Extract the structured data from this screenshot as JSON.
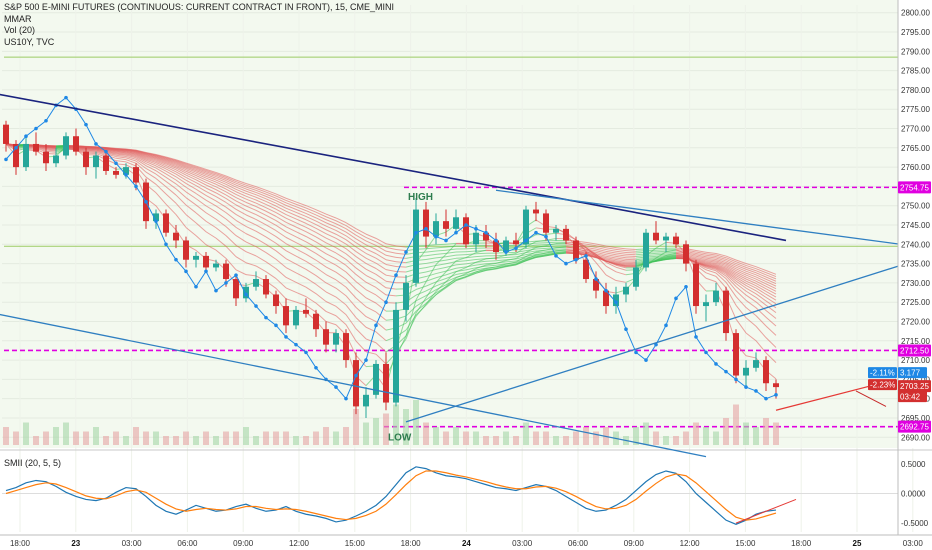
{
  "legend": {
    "title": "S&P 500 E-MINI FUTURES (CONTINUOUS: CURRENT CONTRACT IN FRONT), 15, CME_MINI",
    "indicator_1": "MMAR",
    "indicator_2": "Vol (20)",
    "indicator_3": "US10Y, TVC",
    "oscillator": "SMII (20, 5, 5)"
  },
  "colors": {
    "background": "#f3f9ef",
    "up_candle": "#26a69a",
    "down_candle": "#d32f2f",
    "trendline": "#2f7fc1",
    "dark_trendline": "#1a237e",
    "magenta_level": "#e000e0",
    "us10y": "#1e88e5",
    "smi": "#1f77b4",
    "smi_signal": "#ff7f0e"
  },
  "chart_data": {
    "type": "candlestick",
    "title": "S&P 500 E-MINI FUTURES (CONTINUOUS: CURRENT CONTRACT IN FRONT), 15, CME_MINI",
    "ylim": [
      2688,
      2802
    ],
    "yticks": [
      "2800.00",
      "2795.00",
      "2790.00",
      "2785.00",
      "2780.00",
      "2775.00",
      "2770.00",
      "2765.00",
      "2760.00",
      "2755.00",
      "2750.00",
      "2745.00",
      "2740.00",
      "2735.00",
      "2730.00",
      "2725.00",
      "2720.00",
      "2715.00",
      "2710.00",
      "2705.00",
      "2700.00",
      "2695.00",
      "2690.00"
    ],
    "xticks": [
      {
        "label": "18:00",
        "bold": false
      },
      {
        "label": "23",
        "bold": true
      },
      {
        "label": "03:00",
        "bold": false
      },
      {
        "label": "06:00",
        "bold": false
      },
      {
        "label": "09:00",
        "bold": false
      },
      {
        "label": "12:00",
        "bold": false
      },
      {
        "label": "15:00",
        "bold": false
      },
      {
        "label": "18:00",
        "bold": false
      },
      {
        "label": "24",
        "bold": true
      },
      {
        "label": "03:00",
        "bold": false
      },
      {
        "label": "06:00",
        "bold": false
      },
      {
        "label": "09:00",
        "bold": false
      },
      {
        "label": "12:00",
        "bold": false
      },
      {
        "label": "15:00",
        "bold": false
      },
      {
        "label": "18:00",
        "bold": false
      },
      {
        "label": "25",
        "bold": true
      },
      {
        "label": "03:00",
        "bold": false
      }
    ],
    "price_tags": [
      {
        "label": "2754.75",
        "value": 2754.75,
        "color": "#e000e0"
      },
      {
        "label": "2712.50",
        "value": 2712.5,
        "color": "#e000e0"
      },
      {
        "label": "2692.75",
        "value": 2692.75,
        "color": "#e000e0"
      },
      {
        "label": "2703.25",
        "value": 2703.25,
        "color": "#d32f2f"
      }
    ],
    "small_tags": [
      {
        "label": "-2.11%",
        "color": "#1e88e5"
      },
      {
        "label": "3.177",
        "color": "#1e88e5"
      },
      {
        "label": "-2.23%",
        "color": "#d32f2f"
      },
      {
        "label": "03:42",
        "color": "#d32f2f"
      }
    ],
    "horizontal_levels": [
      {
        "name": "high-level",
        "value": 2754.75,
        "start_index": 40,
        "style": "dashed"
      },
      {
        "name": "mid-level",
        "value": 2712.5,
        "start_index": 0,
        "style": "dashed"
      },
      {
        "name": "low-level",
        "value": 2692.75,
        "start_index": 38,
        "style": "dashed"
      },
      {
        "name": "green-line-top",
        "value": 2788.5,
        "start_index": 0,
        "style": "solid"
      },
      {
        "name": "green-line-mid",
        "value": 2739.5,
        "start_index": 0,
        "style": "solid"
      }
    ],
    "annotations": [
      {
        "label": "HIGH",
        "x_index": 41,
        "value": 2752.5
      },
      {
        "label": "LOW",
        "x_index": 39,
        "value": 2690.2
      }
    ],
    "trendlines": [
      {
        "name": "dark-downtrend",
        "x1": -1,
        "y1": 2779,
        "x2": 78,
        "y2": 2741
      },
      {
        "name": "downtrend-upper",
        "x1": 49,
        "y1": 2754,
        "x2": 101,
        "y2": 2736
      },
      {
        "name": "downtrend-lower",
        "x1": -1,
        "y1": 2722,
        "x2": 70,
        "y2": 2685
      },
      {
        "name": "uptrend",
        "x1": 40,
        "y1": 2694,
        "x2": 101,
        "y2": 2744
      },
      {
        "name": "red-support",
        "x1": 77,
        "y1": 2697,
        "x2": 89,
        "y2": 2705
      },
      {
        "name": "red-resistance",
        "x1": 85,
        "y1": 2702,
        "x2": 88,
        "y2": 2698
      }
    ],
    "candles": [
      [
        2771,
        2772,
        2764,
        2766
      ],
      [
        2766,
        2767,
        2758,
        2760
      ],
      [
        2760,
        2768,
        2759,
        2766
      ],
      [
        2766,
        2769,
        2763,
        2764
      ],
      [
        2764,
        2766,
        2759,
        2761
      ],
      [
        2761,
        2765,
        2760,
        2763
      ],
      [
        2763,
        2769,
        2762,
        2768
      ],
      [
        2768,
        2770,
        2763,
        2764
      ],
      [
        2764,
        2765,
        2758,
        2760
      ],
      [
        2760,
        2764,
        2757,
        2763
      ],
      [
        2763,
        2764,
        2758,
        2759
      ],
      [
        2759,
        2760,
        2757,
        2758
      ],
      [
        2758,
        2761,
        2757,
        2760
      ],
      [
        2760,
        2761,
        2754,
        2756
      ],
      [
        2756,
        2757,
        2744,
        2746
      ],
      [
        2746,
        2749,
        2744,
        2748
      ],
      [
        2748,
        2749,
        2742,
        2743
      ],
      [
        2743,
        2745,
        2739,
        2741
      ],
      [
        2741,
        2742,
        2734,
        2736
      ],
      [
        2736,
        2738,
        2734,
        2737
      ],
      [
        2737,
        2738,
        2733,
        2734
      ],
      [
        2734,
        2736,
        2733,
        2735
      ],
      [
        2735,
        2736,
        2729,
        2731
      ],
      [
        2731,
        2732,
        2724,
        2726
      ],
      [
        2726,
        2730,
        2725,
        2729
      ],
      [
        2729,
        2733,
        2728,
        2731
      ],
      [
        2731,
        2732,
        2726,
        2727
      ],
      [
        2727,
        2728,
        2722,
        2724
      ],
      [
        2724,
        2726,
        2717,
        2719
      ],
      [
        2719,
        2724,
        2718,
        2723
      ],
      [
        2723,
        2726,
        2721,
        2722
      ],
      [
        2722,
        2723,
        2716,
        2718
      ],
      [
        2718,
        2720,
        2712,
        2714
      ],
      [
        2714,
        2718,
        2712,
        2717
      ],
      [
        2717,
        2718,
        2708,
        2710
      ],
      [
        2710,
        2712,
        2696,
        2698
      ],
      [
        2698,
        2703,
        2695,
        2701
      ],
      [
        2701,
        2710,
        2700,
        2709
      ],
      [
        2709,
        2712,
        2697,
        2699
      ],
      [
        2699,
        2725,
        2698,
        2723
      ],
      [
        2723,
        2732,
        2720,
        2730
      ],
      [
        2730,
        2752,
        2729,
        2749
      ],
      [
        2749,
        2751,
        2739,
        2742
      ],
      [
        2742,
        2748,
        2740,
        2746
      ],
      [
        2746,
        2749,
        2742,
        2744
      ],
      [
        2744,
        2749,
        2743,
        2747
      ],
      [
        2747,
        2748,
        2739,
        2740
      ],
      [
        2740,
        2745,
        2738,
        2743
      ],
      [
        2743,
        2745,
        2739,
        2741
      ],
      [
        2741,
        2743,
        2736,
        2738
      ],
      [
        2738,
        2742,
        2737,
        2741
      ],
      [
        2741,
        2743,
        2738,
        2740
      ],
      [
        2740,
        2750,
        2739,
        2749
      ],
      [
        2749,
        2751,
        2746,
        2748
      ],
      [
        2748,
        2749,
        2741,
        2743
      ],
      [
        2743,
        2745,
        2741,
        2744
      ],
      [
        2744,
        2745,
        2740,
        2741
      ],
      [
        2741,
        2742,
        2735,
        2736
      ],
      [
        2736,
        2738,
        2730,
        2731
      ],
      [
        2731,
        2733,
        2726,
        2728
      ],
      [
        2728,
        2730,
        2722,
        2724
      ],
      [
        2724,
        2729,
        2722,
        2727
      ],
      [
        2727,
        2730,
        2725,
        2729
      ],
      [
        2729,
        2736,
        2728,
        2734
      ],
      [
        2734,
        2744,
        2733,
        2743
      ],
      [
        2743,
        2746,
        2740,
        2741
      ],
      [
        2741,
        2743,
        2738,
        2742
      ],
      [
        2742,
        2743,
        2739,
        2740
      ],
      [
        2740,
        2741,
        2733,
        2735
      ],
      [
        2735,
        2736,
        2722,
        2724
      ],
      [
        2724,
        2727,
        2720,
        2725
      ],
      [
        2725,
        2730,
        2724,
        2728
      ],
      [
        2728,
        2729,
        2715,
        2717
      ],
      [
        2717,
        2718,
        2704,
        2706
      ],
      [
        2706,
        2710,
        2703,
        2708
      ],
      [
        2708,
        2712,
        2707,
        2710
      ],
      [
        2710,
        2711,
        2702,
        2704
      ],
      [
        2704,
        2705,
        2700,
        2703
      ]
    ],
    "volume": [
      4,
      3,
      5,
      2,
      3,
      4,
      5,
      3,
      3,
      4,
      2,
      3,
      2,
      4,
      3,
      3,
      2,
      2,
      3,
      2,
      3,
      2,
      3,
      3,
      4,
      2,
      3,
      3,
      3,
      2,
      2,
      3,
      4,
      3,
      4,
      8,
      5,
      6,
      7,
      9,
      8,
      10,
      5,
      4,
      3,
      4,
      3,
      3,
      2,
      2,
      3,
      2,
      5,
      3,
      3,
      2,
      2,
      3,
      4,
      3,
      4,
      3,
      2,
      4,
      5,
      3,
      2,
      2,
      3,
      5,
      4,
      3,
      6,
      9,
      5,
      4,
      6,
      5
    ],
    "us10y": [
      2762,
      2765,
      2768,
      2770,
      2772,
      2776,
      2778,
      2775,
      2771,
      2766,
      2764,
      2761,
      2758,
      2755,
      2751,
      2746,
      2740,
      2736,
      2733,
      2729,
      2733,
      2728,
      2730,
      2732,
      2727,
      2724,
      2721,
      2719,
      2716,
      2714,
      2712,
      2708,
      2705,
      2703,
      2700,
      2706,
      2710,
      2719,
      2725,
      2732,
      2738,
      2743,
      2744,
      2742,
      2741,
      2743,
      2745,
      2744,
      2743,
      2741,
      2738,
      2739,
      2741,
      2743,
      2742,
      2737,
      2735,
      2736,
      2737,
      2731,
      2728,
      2725,
      2718,
      2712,
      2710,
      2714,
      2719,
      2726,
      2729,
      2716,
      2712,
      2709,
      2707,
      2705,
      2703,
      2702,
      2700,
      2701
    ],
    "oscillator": {
      "name": "SMII (20, 5, 5)",
      "ylim": [
        -0.65,
        0.65
      ],
      "yticks": [
        "0.5000",
        "0.0000",
        "-0.5000"
      ],
      "smi": [
        0.05,
        0.1,
        0.18,
        0.22,
        0.2,
        0.12,
        0.02,
        -0.05,
        -0.1,
        -0.12,
        -0.08,
        0.02,
        0.1,
        0.08,
        -0.05,
        -0.2,
        -0.3,
        -0.35,
        -0.28,
        -0.2,
        -0.25,
        -0.3,
        -0.28,
        -0.22,
        -0.18,
        -0.25,
        -0.3,
        -0.28,
        -0.22,
        -0.3,
        -0.35,
        -0.38,
        -0.42,
        -0.48,
        -0.45,
        -0.38,
        -0.3,
        -0.2,
        -0.05,
        0.15,
        0.35,
        0.45,
        0.42,
        0.35,
        0.3,
        0.28,
        0.25,
        0.2,
        0.15,
        0.1,
        0.08,
        0.05,
        0.1,
        0.15,
        0.12,
        0.05,
        -0.05,
        -0.15,
        -0.25,
        -0.3,
        -0.28,
        -0.2,
        -0.1,
        0.05,
        0.2,
        0.32,
        0.38,
        0.34,
        0.2,
        0.0,
        -0.15,
        -0.3,
        -0.45,
        -0.52,
        -0.45,
        -0.35,
        -0.3,
        -0.28
      ],
      "signal": [
        0.0,
        0.05,
        0.1,
        0.15,
        0.18,
        0.16,
        0.1,
        0.03,
        -0.04,
        -0.08,
        -0.09,
        -0.04,
        0.03,
        0.06,
        0.02,
        -0.08,
        -0.18,
        -0.26,
        -0.3,
        -0.27,
        -0.25,
        -0.27,
        -0.28,
        -0.26,
        -0.22,
        -0.22,
        -0.25,
        -0.27,
        -0.26,
        -0.27,
        -0.3,
        -0.34,
        -0.38,
        -0.42,
        -0.44,
        -0.42,
        -0.37,
        -0.3,
        -0.18,
        -0.02,
        0.15,
        0.3,
        0.38,
        0.38,
        0.35,
        0.31,
        0.28,
        0.24,
        0.2,
        0.15,
        0.11,
        0.08,
        0.08,
        0.11,
        0.12,
        0.09,
        0.03,
        -0.05,
        -0.14,
        -0.22,
        -0.26,
        -0.25,
        -0.2,
        -0.1,
        0.04,
        0.17,
        0.28,
        0.33,
        0.3,
        0.18,
        0.03,
        -0.12,
        -0.27,
        -0.4,
        -0.45,
        -0.43,
        -0.38,
        -0.33
      ]
    }
  }
}
